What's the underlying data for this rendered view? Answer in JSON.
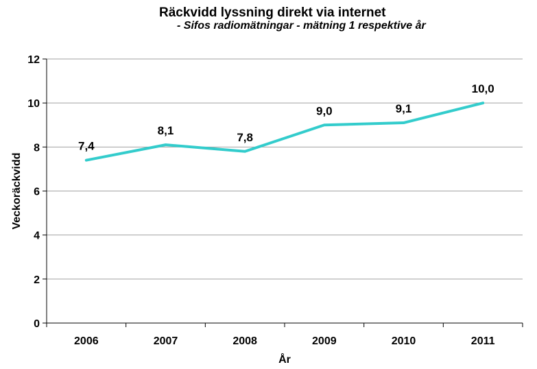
{
  "chart_data": {
    "type": "line",
    "title": "Räckvidd lyssning direkt via internet",
    "subtitle": "- Sifos radiomätningar - mätning 1 respektive år",
    "xlabel": "År",
    "ylabel": "Veckoräckvidd",
    "categories": [
      "2006",
      "2007",
      "2008",
      "2009",
      "2010",
      "2011"
    ],
    "series": [
      {
        "values": [
          7.4,
          8.1,
          7.8,
          9.0,
          9.1,
          10.0
        ],
        "data_labels": [
          "7,4",
          "8,1",
          "7,8",
          "9,0",
          "9,1",
          "10,0"
        ],
        "color": "#33CCCC"
      }
    ],
    "ylim": [
      0,
      12
    ],
    "yticks": [
      "0",
      "2",
      "4",
      "6",
      "8",
      "10",
      "12"
    ],
    "grid": true,
    "legend": "none"
  }
}
